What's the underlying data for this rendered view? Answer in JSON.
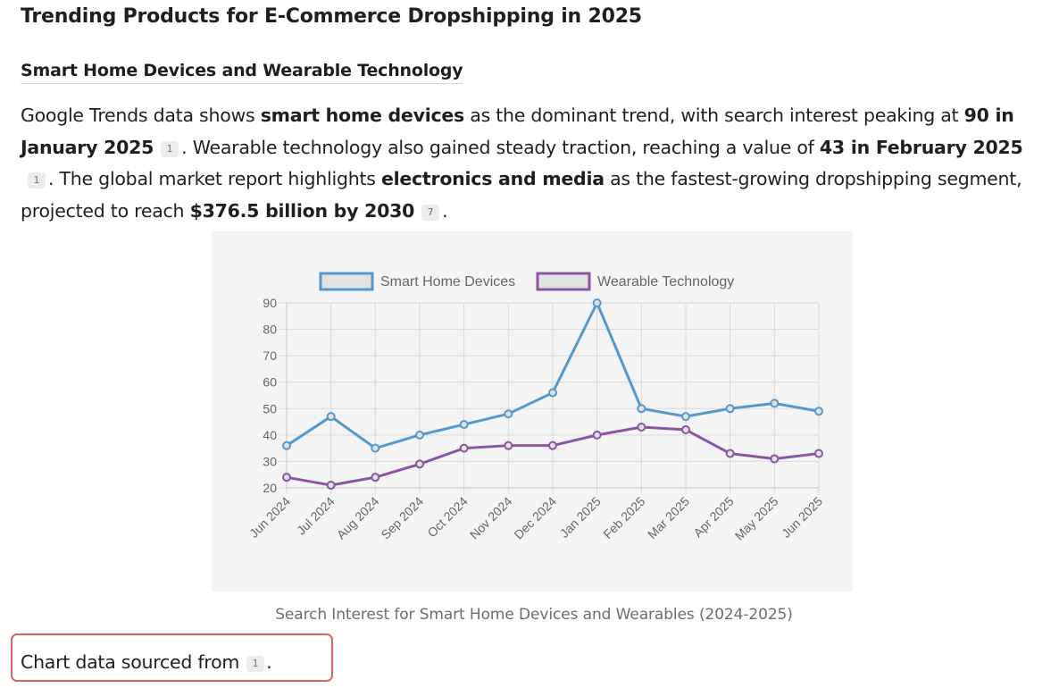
{
  "page_title": "Trending Products for E-Commerce Dropshipping in 2025",
  "section_heading": "Smart Home Devices and Wearable Technology",
  "paragraph": {
    "t1": "Google Trends data shows ",
    "b1": "smart home devices",
    "t2": " as the dominant trend, with search interest peaking at ",
    "b2": "90 in January 2025",
    "c1": "1",
    "t3": ". Wearable technology also gained steady traction, reaching a value of ",
    "b3": "43 in February 2025",
    "c2": "1",
    "t4": ". The global market report highlights ",
    "b4": "electronics and media",
    "t5": " as the fastest-growing dropshipping segment, projected to reach ",
    "b5": "$376.5 billion by 2030",
    "c3": "7",
    "t6": "."
  },
  "caption": "Search Interest for Smart Home Devices and Wearables (2024-2025)",
  "source": {
    "text": "Chart data sourced from",
    "cite": "1",
    "end": "."
  },
  "colors": {
    "smart_home": "#5599cc",
    "wearable": "#8a55a3",
    "highlight_box": "#e06068"
  },
  "chart_data": {
    "type": "line",
    "categories": [
      "Jun 2024",
      "Jul 2024",
      "Aug 2024",
      "Sep 2024",
      "Oct 2024",
      "Nov 2024",
      "Dec 2024",
      "Jan 2025",
      "Feb 2025",
      "Mar 2025",
      "Apr 2025",
      "May 2025",
      "Jun 2025"
    ],
    "series": [
      {
        "name": "Smart Home Devices",
        "values": [
          36,
          47,
          35,
          40,
          44,
          48,
          56,
          90,
          50,
          47,
          50,
          52,
          49
        ]
      },
      {
        "name": "Wearable Technology",
        "values": [
          24,
          21,
          24,
          29,
          35,
          36,
          36,
          40,
          43,
          42,
          33,
          31,
          33
        ]
      }
    ],
    "yticks": [
      20,
      30,
      40,
      50,
      60,
      70,
      80,
      90
    ],
    "ylim": [
      20,
      90
    ],
    "grid": true,
    "legend": "top"
  }
}
